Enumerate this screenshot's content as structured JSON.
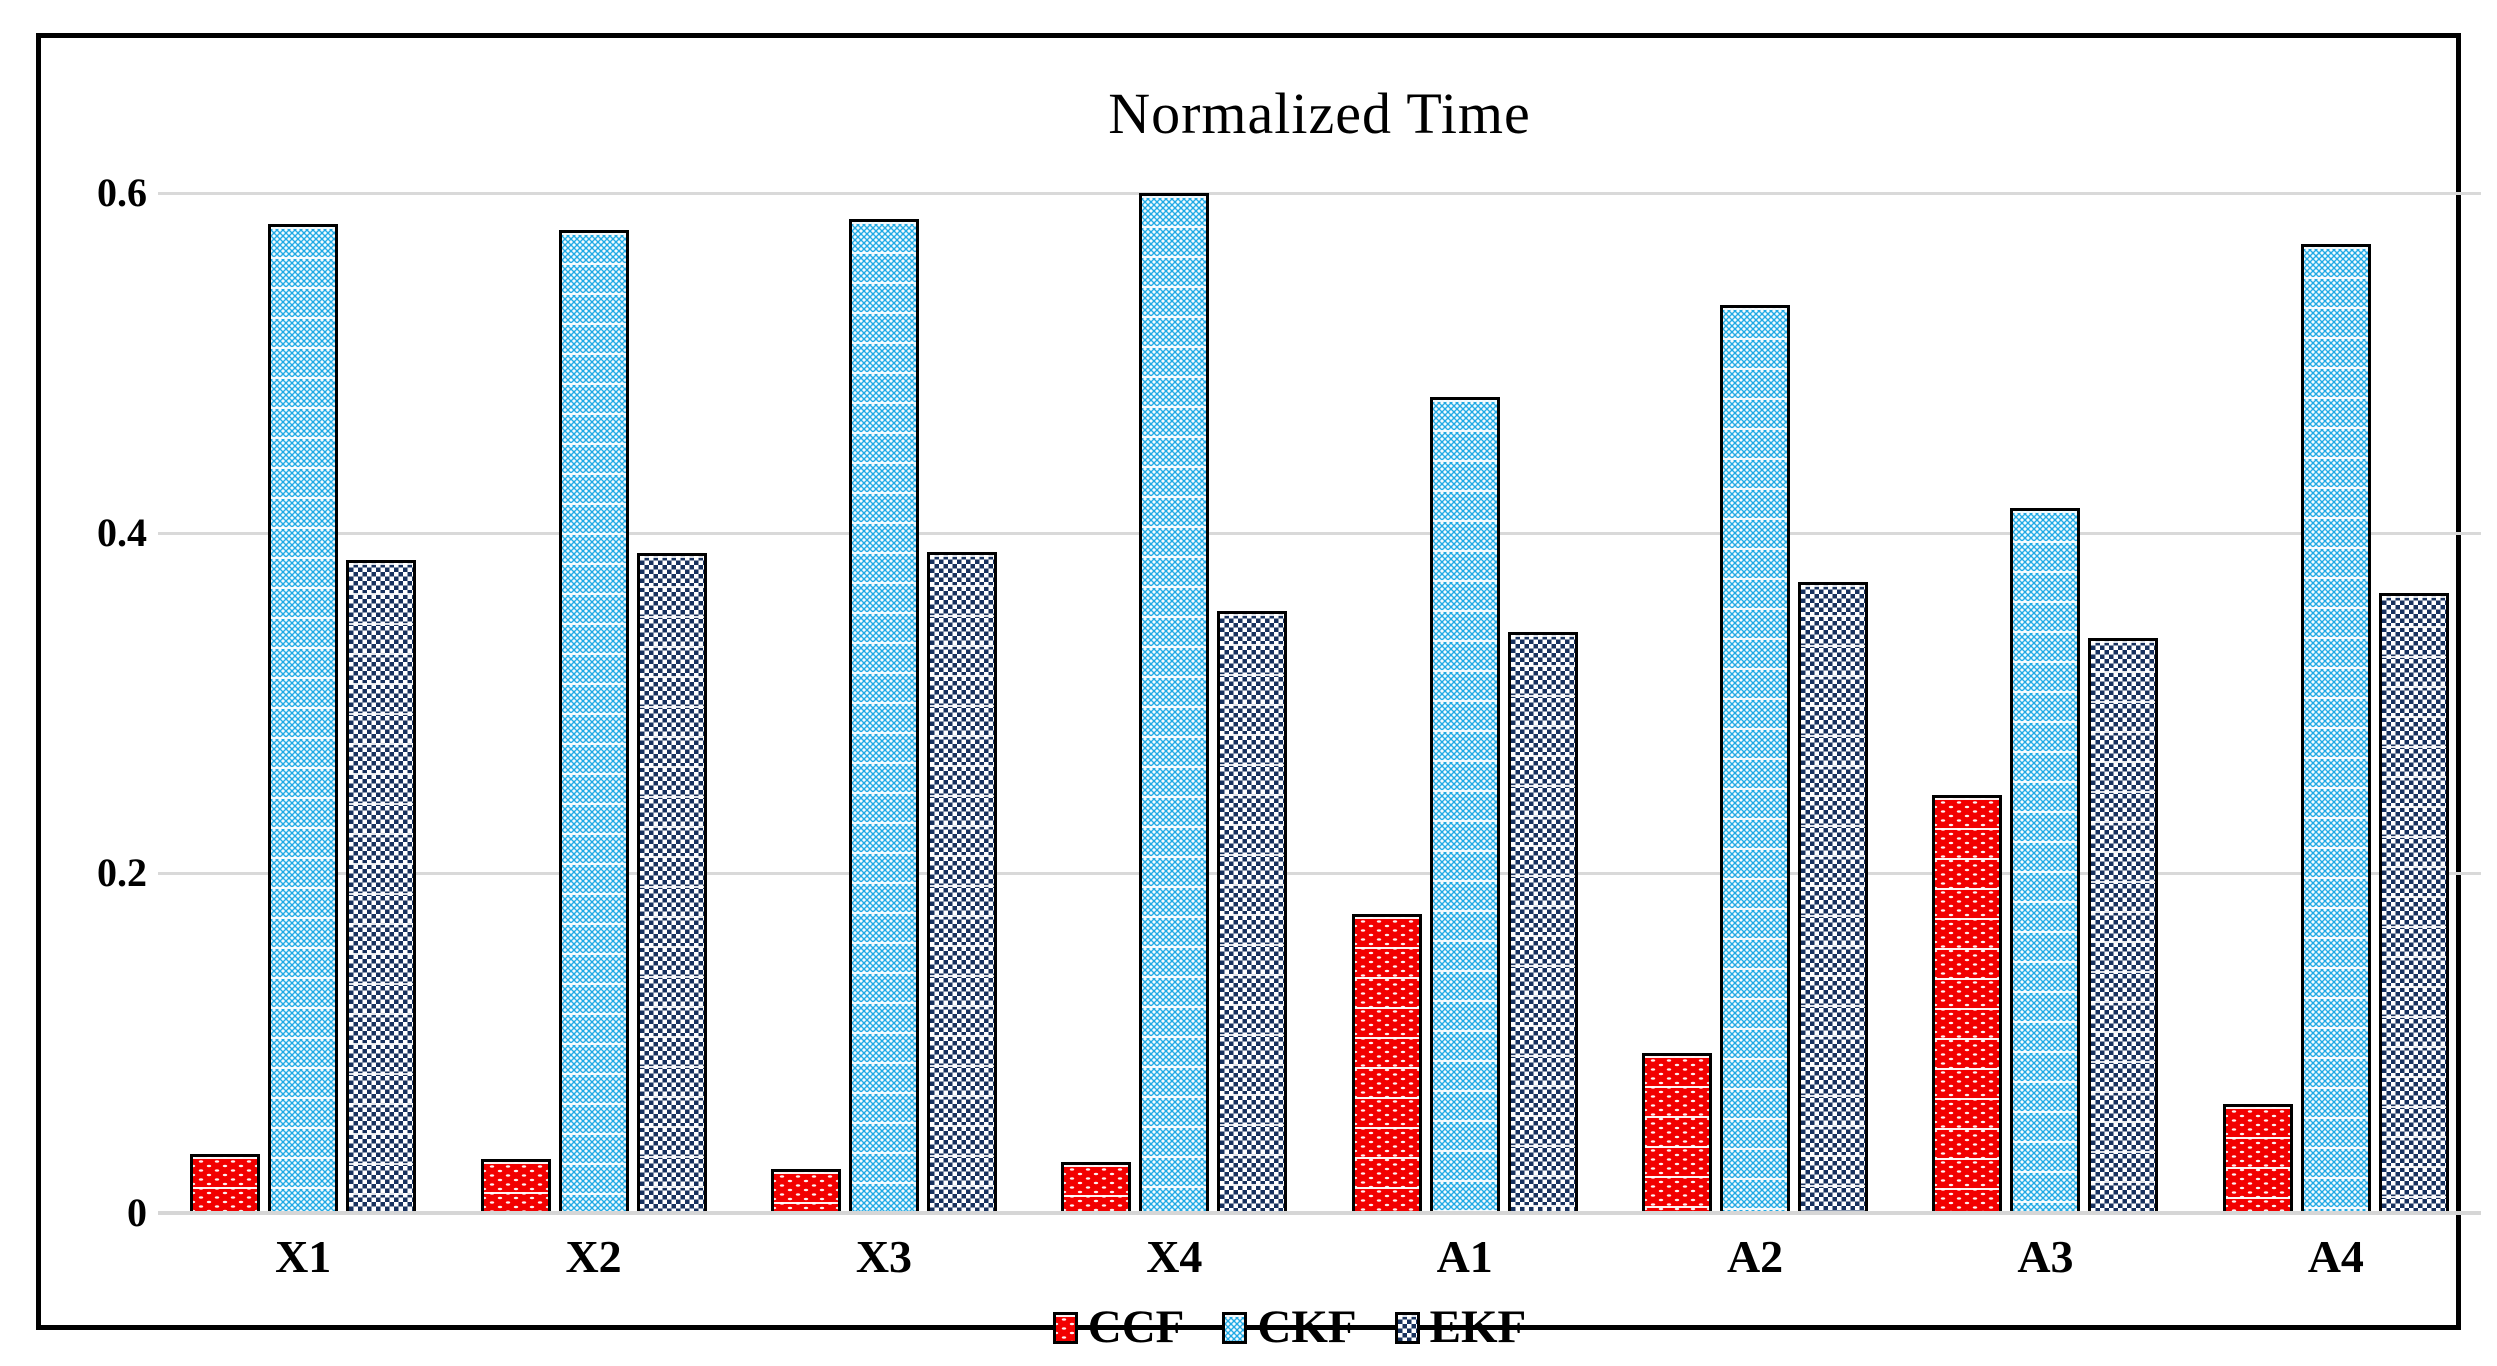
{
  "title": "Normalized Time",
  "legend": [
    {
      "label": "CCF",
      "color": "#f20000",
      "pattern": "dotted"
    },
    {
      "label": "CKF",
      "color": "#1fa9e4",
      "pattern": "dotted-grid"
    },
    {
      "label": "EKF",
      "color": "#17315e",
      "pattern": "checker"
    }
  ],
  "axis": {
    "y_ticks": [
      {
        "label": "0",
        "value": 0
      },
      {
        "label": "0.2",
        "value": 0.2
      },
      {
        "label": "0.4",
        "value": 0.4
      },
      {
        "label": "0.6",
        "value": 0.6
      }
    ],
    "gridline_color": "#d9d9d9"
  },
  "chart_data": {
    "type": "bar",
    "title": "Normalized Time",
    "categories": [
      "X1",
      "X2",
      "X3",
      "X4",
      "A1",
      "A2",
      "A3",
      "A4"
    ],
    "series": [
      {
        "name": "CCF",
        "color": "#f20000",
        "values": [
          0.035,
          0.032,
          0.026,
          0.03,
          0.176,
          0.094,
          0.246,
          0.064
        ]
      },
      {
        "name": "CKF",
        "color": "#1fa9e4",
        "values": [
          0.582,
          0.578,
          0.585,
          0.6,
          0.48,
          0.534,
          0.415,
          0.57
        ]
      },
      {
        "name": "EKF",
        "color": "#17315e",
        "values": [
          0.384,
          0.388,
          0.389,
          0.354,
          0.342,
          0.371,
          0.338,
          0.365
        ]
      }
    ],
    "xlabel": "",
    "ylabel": "",
    "ylim": [
      0,
      0.6
    ],
    "grid": true,
    "legend_position": "bottom-center"
  }
}
